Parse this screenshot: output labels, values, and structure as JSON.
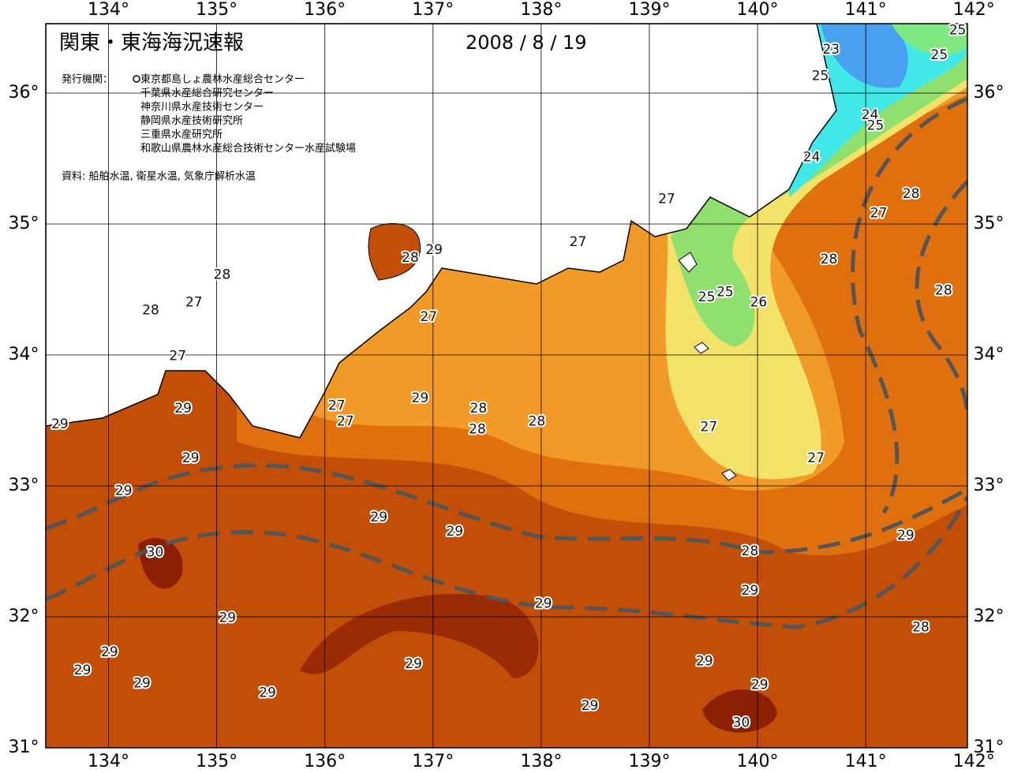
{
  "header": {
    "title": "関東・東海海況速報",
    "date": "2008 / 8 / 19",
    "publisher_label": "発行機関：",
    "publishers": [
      "東京都島しょ農林水産総合センター",
      "千葉県水産総合研究センター",
      "神奈川県水産技術センター",
      "静岡県水産技術研究所",
      "三重県水産研究所",
      "和歌山県農林水産総合技術センター水産試験場"
    ],
    "source": "資料: 船舶水温, 衛星水温, 気象庁解析水温"
  },
  "map": {
    "lonlim": [
      133.42,
      141.94
    ],
    "latlim": [
      31.0,
      36.53
    ],
    "lon_ticks": [
      {
        "value": 134,
        "label": "134°"
      },
      {
        "value": 135,
        "label": "135°"
      },
      {
        "value": 136,
        "label": "136°"
      },
      {
        "value": 137,
        "label": "137°"
      },
      {
        "value": 138,
        "label": "138°"
      },
      {
        "value": 139,
        "label": "139°"
      },
      {
        "value": 140,
        "label": "140°"
      },
      {
        "value": 141,
        "label": "141°"
      },
      {
        "value": 142,
        "label": "142°"
      }
    ],
    "lat_ticks": [
      {
        "value": 31,
        "label": "31°"
      },
      {
        "value": 32,
        "label": "32°"
      },
      {
        "value": 33,
        "label": "33°"
      },
      {
        "value": 34,
        "label": "34°"
      },
      {
        "value": 35,
        "label": "35°"
      },
      {
        "value": 36,
        "label": "36°"
      }
    ],
    "contour_labels": [
      {
        "value": 25,
        "lon": 141.85,
        "lat": 36.48
      },
      {
        "value": 23,
        "lon": 140.68,
        "lat": 36.33
      },
      {
        "value": 25,
        "lon": 141.68,
        "lat": 36.29
      },
      {
        "value": 25,
        "lon": 140.58,
        "lat": 36.13
      },
      {
        "value": 24,
        "lon": 141.04,
        "lat": 35.83
      },
      {
        "value": 25,
        "lon": 141.09,
        "lat": 35.75
      },
      {
        "value": 24,
        "lon": 140.5,
        "lat": 35.51
      },
      {
        "value": 28,
        "lon": 141.42,
        "lat": 35.23
      },
      {
        "value": 27,
        "lon": 139.16,
        "lat": 35.19
      },
      {
        "value": 27,
        "lon": 141.12,
        "lat": 35.08
      },
      {
        "value": 27,
        "lon": 138.34,
        "lat": 34.86
      },
      {
        "value": 28,
        "lon": 136.79,
        "lat": 34.74
      },
      {
        "value": 29,
        "lon": 137.01,
        "lat": 34.8
      },
      {
        "value": 28,
        "lon": 140.66,
        "lat": 34.73
      },
      {
        "value": 28,
        "lon": 135.05,
        "lat": 34.61
      },
      {
        "value": 25,
        "lon": 139.53,
        "lat": 34.44
      },
      {
        "value": 25,
        "lon": 139.7,
        "lat": 34.48
      },
      {
        "value": 26,
        "lon": 140.01,
        "lat": 34.4
      },
      {
        "value": 28,
        "lon": 141.72,
        "lat": 34.49
      },
      {
        "value": 28,
        "lon": 134.39,
        "lat": 34.34
      },
      {
        "value": 27,
        "lon": 134.79,
        "lat": 34.4
      },
      {
        "value": 27,
        "lon": 136.96,
        "lat": 34.29
      },
      {
        "value": 27,
        "lon": 134.64,
        "lat": 33.99
      },
      {
        "value": 29,
        "lon": 136.88,
        "lat": 33.67
      },
      {
        "value": 29,
        "lon": 134.69,
        "lat": 33.59
      },
      {
        "value": 27,
        "lon": 136.11,
        "lat": 33.61
      },
      {
        "value": 28,
        "lon": 137.42,
        "lat": 33.59
      },
      {
        "value": 27,
        "lon": 136.19,
        "lat": 33.49
      },
      {
        "value": 28,
        "lon": 137.41,
        "lat": 33.43
      },
      {
        "value": 28,
        "lon": 137.96,
        "lat": 33.49
      },
      {
        "value": 29,
        "lon": 133.55,
        "lat": 33.47
      },
      {
        "value": 27,
        "lon": 139.55,
        "lat": 33.45
      },
      {
        "value": 29,
        "lon": 134.76,
        "lat": 33.21
      },
      {
        "value": 27,
        "lon": 140.54,
        "lat": 33.21
      },
      {
        "value": 29,
        "lon": 134.14,
        "lat": 32.96
      },
      {
        "value": 29,
        "lon": 136.5,
        "lat": 32.76
      },
      {
        "value": 29,
        "lon": 137.2,
        "lat": 32.65
      },
      {
        "value": 30,
        "lon": 134.43,
        "lat": 32.49
      },
      {
        "value": 29,
        "lon": 141.37,
        "lat": 32.62
      },
      {
        "value": 28,
        "lon": 139.93,
        "lat": 32.5
      },
      {
        "value": 29,
        "lon": 139.93,
        "lat": 32.2
      },
      {
        "value": 29,
        "lon": 138.02,
        "lat": 32.1
      },
      {
        "value": 29,
        "lon": 135.1,
        "lat": 31.99
      },
      {
        "value": 28,
        "lon": 141.51,
        "lat": 31.92
      },
      {
        "value": 29,
        "lon": 134.01,
        "lat": 31.73
      },
      {
        "value": 29,
        "lon": 139.51,
        "lat": 31.66
      },
      {
        "value": 29,
        "lon": 133.76,
        "lat": 31.59
      },
      {
        "value": 29,
        "lon": 136.82,
        "lat": 31.64
      },
      {
        "value": 29,
        "lon": 140.02,
        "lat": 31.48
      },
      {
        "value": 29,
        "lon": 134.31,
        "lat": 31.49
      },
      {
        "value": 29,
        "lon": 135.47,
        "lat": 31.42
      },
      {
        "value": 29,
        "lon": 138.45,
        "lat": 31.32
      },
      {
        "value": 30,
        "lon": 139.85,
        "lat": 31.19
      }
    ]
  }
}
